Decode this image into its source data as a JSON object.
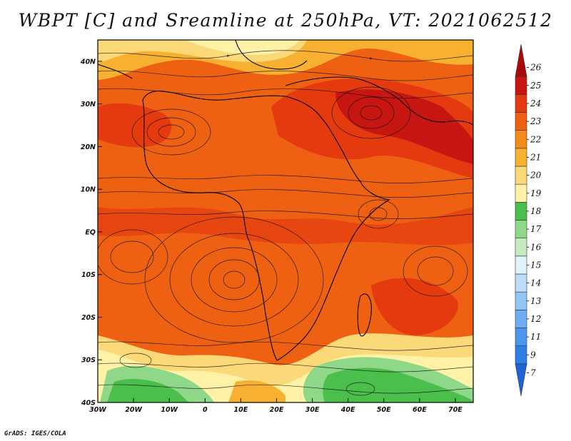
{
  "title": "WBPT [C] and Sreamline at 250hPa, VT: 2021062512",
  "footer": "GrADS: IGES/COLA",
  "map": {
    "lon_range": [
      -30,
      75
    ],
    "lat_range": [
      -40,
      45
    ],
    "lat_ticks": [
      {
        "lat": 40,
        "label": "40N"
      },
      {
        "lat": 30,
        "label": "30N"
      },
      {
        "lat": 20,
        "label": "20N"
      },
      {
        "lat": 10,
        "label": "10N"
      },
      {
        "lat": 0,
        "label": "EQ"
      },
      {
        "lat": -10,
        "label": "10S"
      },
      {
        "lat": -20,
        "label": "20S"
      },
      {
        "lat": -30,
        "label": "30S"
      },
      {
        "lat": -40,
        "label": "40S"
      }
    ],
    "lon_ticks": [
      {
        "lon": -30,
        "label": "30W"
      },
      {
        "lon": -20,
        "label": "20W"
      },
      {
        "lon": -10,
        "label": "10W"
      },
      {
        "lon": 0,
        "label": "0"
      },
      {
        "lon": 10,
        "label": "10E"
      },
      {
        "lon": 20,
        "label": "20E"
      },
      {
        "lon": 30,
        "label": "30E"
      },
      {
        "lon": 40,
        "label": "40E"
      },
      {
        "lon": 50,
        "label": "50E"
      },
      {
        "lon": 60,
        "label": "60E"
      },
      {
        "lon": 70,
        "label": "70E"
      }
    ]
  },
  "colorbar": {
    "labels": [
      "7",
      "9",
      "11",
      "12",
      "13",
      "14",
      "15",
      "16",
      "17",
      "18",
      "19",
      "20",
      "21",
      "22",
      "23",
      "24",
      "25",
      "26"
    ],
    "colors": [
      "#1f63d6",
      "#2e7fe6",
      "#4a96ee",
      "#6daef2",
      "#93c6f6",
      "#bcdcf9",
      "#e2f2fb",
      "#c4ebbe",
      "#8fd88a",
      "#4bbf4b",
      "#fff2a6",
      "#fbd878",
      "#f7b030",
      "#f38b1c",
      "#ee6112",
      "#e53a10",
      "#c71612",
      "#a80a0a"
    ]
  }
}
